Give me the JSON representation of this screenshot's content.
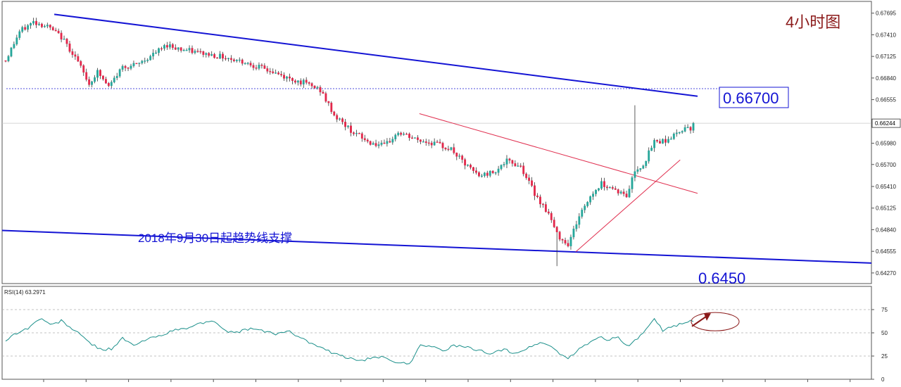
{
  "chart_data": [
    {
      "type": "candlestick",
      "title": "4小时图",
      "annotation_support": "2018年9月30日起趋势线支撑",
      "ylim": [
        0.6413,
        0.6785
      ],
      "y_ticks": [
        0.67695,
        0.6741,
        0.67125,
        0.6684,
        0.66555,
        0.66244,
        0.6598,
        0.657,
        0.6541,
        0.65125,
        0.6484,
        0.64555,
        0.6427
      ],
      "current_price": 0.66244,
      "current_price_label": "0.66244",
      "level_resistance": 0.667,
      "level_resistance_label": "0.66700",
      "level_support_label": "0.6450",
      "anchors": [
        [
          0,
          0.6707
        ],
        [
          5,
          0.6745
        ],
        [
          10,
          0.6758
        ],
        [
          15,
          0.6752
        ],
        [
          20,
          0.6738
        ],
        [
          25,
          0.6712
        ],
        [
          30,
          0.6676
        ],
        [
          33,
          0.6692
        ],
        [
          37,
          0.6672
        ],
        [
          42,
          0.6699
        ],
        [
          47,
          0.6701
        ],
        [
          53,
          0.6715
        ],
        [
          58,
          0.6728
        ],
        [
          63,
          0.6722
        ],
        [
          70,
          0.6717
        ],
        [
          78,
          0.6712
        ],
        [
          86,
          0.6705
        ],
        [
          95,
          0.6693
        ],
        [
          101,
          0.6684
        ],
        [
          107,
          0.6678
        ],
        [
          113,
          0.6668
        ],
        [
          118,
          0.6635
        ],
        [
          124,
          0.6615
        ],
        [
          130,
          0.66
        ],
        [
          136,
          0.6594
        ],
        [
          141,
          0.6612
        ],
        [
          148,
          0.6602
        ],
        [
          154,
          0.6598
        ],
        [
          160,
          0.659
        ],
        [
          165,
          0.657
        ],
        [
          170,
          0.6555
        ],
        [
          175,
          0.656
        ],
        [
          180,
          0.6574
        ],
        [
          185,
          0.6568
        ],
        [
          190,
          0.6532
        ],
        [
          195,
          0.6505
        ],
        [
          198,
          0.6478
        ],
        [
          202,
          0.6465
        ],
        [
          206,
          0.6502
        ],
        [
          210,
          0.6528
        ],
        [
          214,
          0.6545
        ],
        [
          218,
          0.6539
        ],
        [
          223,
          0.6528
        ],
        [
          226,
          0.6562
        ],
        [
          229,
          0.657
        ],
        [
          233,
          0.66
        ],
        [
          237,
          0.6602
        ],
        [
          241,
          0.661
        ],
        [
          244,
          0.662
        ],
        [
          247,
          0.6617
        ]
      ],
      "trendlines": [
        {
          "name": "blue-resistance",
          "color": "#1414d4",
          "points": [
            [
              0.06,
              0.6768
            ],
            [
              0.8,
              0.666
            ]
          ]
        },
        {
          "name": "blue-support",
          "color": "#1414d4",
          "points": [
            [
              0.0,
              0.6483
            ],
            [
              1.0,
              0.644
            ]
          ]
        },
        {
          "name": "red-descending",
          "color": "#e03050",
          "points": [
            [
              0.48,
              0.6637
            ],
            [
              0.8,
              0.6532
            ]
          ]
        },
        {
          "name": "red-ascending",
          "color": "#e03050",
          "points": [
            [
              0.66,
              0.6455
            ],
            [
              0.78,
              0.6576
            ]
          ]
        }
      ]
    },
    {
      "type": "line",
      "indicator_label": "RSI(14) 63.2971",
      "ylim": [
        0,
        100
      ],
      "y_ticks": [
        75,
        50,
        25,
        0
      ],
      "anchors": [
        [
          0,
          42
        ],
        [
          4,
          50
        ],
        [
          8,
          55
        ],
        [
          11,
          62
        ],
        [
          13,
          66
        ],
        [
          16,
          58
        ],
        [
          20,
          63
        ],
        [
          25,
          52
        ],
        [
          30,
          40
        ],
        [
          34,
          32
        ],
        [
          38,
          33
        ],
        [
          42,
          44
        ],
        [
          46,
          36
        ],
        [
          50,
          42
        ],
        [
          55,
          47
        ],
        [
          60,
          52
        ],
        [
          65,
          55
        ],
        [
          70,
          60
        ],
        [
          74,
          64
        ],
        [
          78,
          53
        ],
        [
          83,
          50
        ],
        [
          88,
          55
        ],
        [
          92,
          52
        ],
        [
          97,
          49
        ],
        [
          101,
          52
        ],
        [
          105,
          47
        ],
        [
          110,
          38
        ],
        [
          114,
          33
        ],
        [
          118,
          27
        ],
        [
          122,
          24
        ],
        [
          126,
          20
        ],
        [
          131,
          22
        ],
        [
          136,
          24
        ],
        [
          140,
          19
        ],
        [
          145,
          16
        ],
        [
          149,
          38
        ],
        [
          153,
          35
        ],
        [
          157,
          31
        ],
        [
          161,
          36
        ],
        [
          166,
          34
        ],
        [
          171,
          30
        ],
        [
          175,
          28
        ],
        [
          179,
          32
        ],
        [
          183,
          28
        ],
        [
          188,
          34
        ],
        [
          192,
          40
        ],
        [
          196,
          35
        ],
        [
          199,
          28
        ],
        [
          202,
          22
        ],
        [
          205,
          30
        ],
        [
          209,
          38
        ],
        [
          213,
          46
        ],
        [
          216,
          43
        ],
        [
          220,
          45
        ],
        [
          224,
          35
        ],
        [
          227,
          44
        ],
        [
          230,
          53
        ],
        [
          233,
          64
        ],
        [
          236,
          53
        ],
        [
          240,
          57
        ],
        [
          244,
          62
        ],
        [
          247,
          63
        ]
      ],
      "arrow_marker": true
    }
  ]
}
